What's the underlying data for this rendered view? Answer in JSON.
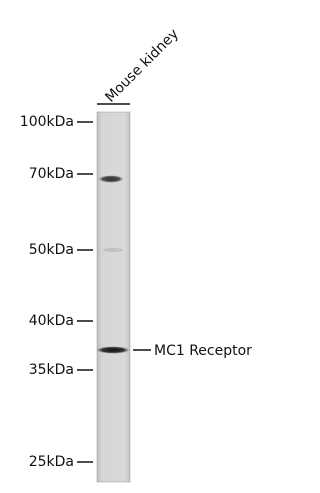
{
  "lane_label": "Mouse kidney",
  "markers": [
    "100kDa",
    "70kDa",
    "50kDa",
    "40kDa",
    "35kDa",
    "25kDa"
  ],
  "band_label": "MC1 Receptor"
}
